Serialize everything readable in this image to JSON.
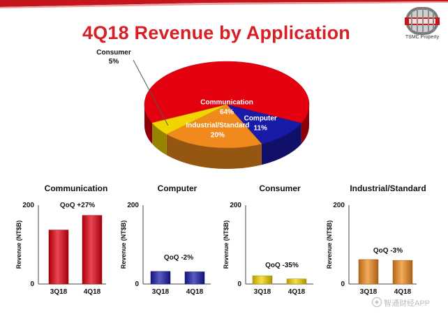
{
  "title": "4Q18 Revenue by Application",
  "logo_caption": "TSMC Property",
  "watermark": "智通财经APP",
  "colors": {
    "title_red": "#d81f26",
    "communication": "#e3000f",
    "computer": "#1a1aa8",
    "consumer": "#f2d400",
    "industrial": "#f08a1c"
  },
  "chart_data": [
    {
      "type": "pie",
      "title": "",
      "slices": [
        {
          "label": "Communication",
          "value": 64,
          "display": "64%"
        },
        {
          "label": "Computer",
          "value": 11,
          "display": "11%"
        },
        {
          "label": "Industrial/Standard",
          "value": 20,
          "display": "20%"
        },
        {
          "label": "Consumer",
          "value": 5,
          "display": "5%"
        }
      ]
    },
    {
      "type": "bar",
      "title": "Communication",
      "categories": [
        "3Q18",
        "4Q18"
      ],
      "values": [
        137,
        174
      ],
      "ylabel": "Revenue (NT$B)",
      "ylim": [
        0,
        200
      ],
      "yticks": [
        "0",
        "200"
      ],
      "annotation": "QoQ  +27%"
    },
    {
      "type": "bar",
      "title": "Computer",
      "categories": [
        "3Q18",
        "4Q18"
      ],
      "values": [
        32,
        31
      ],
      "ylabel": "Revenue (NT$B)",
      "ylim": [
        0,
        200
      ],
      "yticks": [
        "0",
        "200"
      ],
      "annotation": "QoQ  -2%"
    },
    {
      "type": "bar",
      "title": "Consumer",
      "categories": [
        "3Q18",
        "4Q18"
      ],
      "values": [
        21,
        13
      ],
      "ylabel": "Revenue (NT$B)",
      "ylim": [
        0,
        200
      ],
      "yticks": [
        "0",
        "200"
      ],
      "annotation": "QoQ  -35%"
    },
    {
      "type": "bar",
      "title": "Industrial/Standard",
      "categories": [
        "3Q18",
        "4Q18"
      ],
      "values": [
        62,
        60
      ],
      "ylabel": "Revenue (NT$B)",
      "ylim": [
        0,
        200
      ],
      "yticks": [
        "0",
        "200"
      ],
      "annotation": "QoQ  -3%"
    }
  ]
}
